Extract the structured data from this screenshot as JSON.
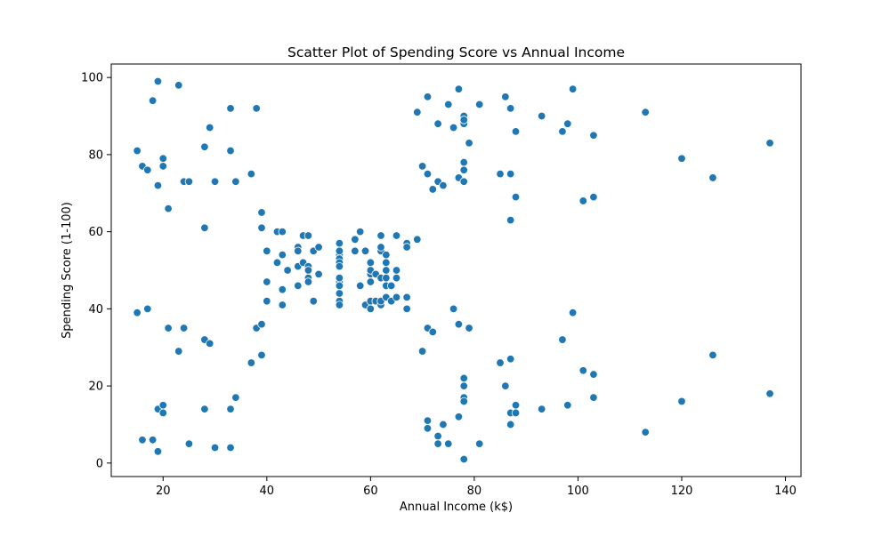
{
  "chart_data": {
    "type": "scatter",
    "title": "Scatter Plot of Spending Score vs Annual Income",
    "xlabel": "Annual Income (k$)",
    "ylabel": "Spending Score (1-100)",
    "xlim": [
      10,
      143
    ],
    "ylim": [
      -3.5,
      103.5
    ],
    "xticks": [
      20,
      40,
      60,
      80,
      100,
      120,
      140
    ],
    "yticks": [
      0,
      20,
      40,
      60,
      80,
      100
    ],
    "grid": false,
    "marker_color": "#1f77b4",
    "points": [
      [
        15,
        39
      ],
      [
        15,
        81
      ],
      [
        16,
        6
      ],
      [
        16,
        77
      ],
      [
        17,
        40
      ],
      [
        17,
        76
      ],
      [
        18,
        6
      ],
      [
        18,
        94
      ],
      [
        19,
        3
      ],
      [
        19,
        72
      ],
      [
        19,
        14
      ],
      [
        19,
        99
      ],
      [
        20,
        15
      ],
      [
        20,
        77
      ],
      [
        20,
        13
      ],
      [
        20,
        79
      ],
      [
        21,
        35
      ],
      [
        21,
        66
      ],
      [
        23,
        29
      ],
      [
        23,
        98
      ],
      [
        24,
        35
      ],
      [
        24,
        73
      ],
      [
        25,
        5
      ],
      [
        25,
        73
      ],
      [
        28,
        14
      ],
      [
        28,
        82
      ],
      [
        28,
        32
      ],
      [
        28,
        61
      ],
      [
        29,
        31
      ],
      [
        29,
        87
      ],
      [
        30,
        4
      ],
      [
        30,
        73
      ],
      [
        33,
        4
      ],
      [
        33,
        92
      ],
      [
        33,
        14
      ],
      [
        33,
        81
      ],
      [
        34,
        17
      ],
      [
        34,
        73
      ],
      [
        37,
        26
      ],
      [
        37,
        75
      ],
      [
        38,
        35
      ],
      [
        38,
        92
      ],
      [
        39,
        36
      ],
      [
        39,
        61
      ],
      [
        39,
        28
      ],
      [
        39,
        65
      ],
      [
        40,
        55
      ],
      [
        40,
        47
      ],
      [
        40,
        42
      ],
      [
        42,
        52
      ],
      [
        42,
        60
      ],
      [
        43,
        54
      ],
      [
        43,
        60
      ],
      [
        43,
        45
      ],
      [
        43,
        41
      ],
      [
        44,
        50
      ],
      [
        46,
        46
      ],
      [
        46,
        51
      ],
      [
        46,
        56
      ],
      [
        46,
        55
      ],
      [
        47,
        52
      ],
      [
        47,
        59
      ],
      [
        48,
        51
      ],
      [
        48,
        59
      ],
      [
        48,
        50
      ],
      [
        48,
        48
      ],
      [
        48,
        47
      ],
      [
        49,
        55
      ],
      [
        49,
        42
      ],
      [
        50,
        49
      ],
      [
        50,
        56
      ],
      [
        54,
        47
      ],
      [
        54,
        54
      ],
      [
        54,
        53
      ],
      [
        54,
        48
      ],
      [
        54,
        52
      ],
      [
        54,
        42
      ],
      [
        54,
        51
      ],
      [
        54,
        55
      ],
      [
        54,
        41
      ],
      [
        54,
        44
      ],
      [
        54,
        57
      ],
      [
        54,
        46
      ],
      [
        57,
        58
      ],
      [
        57,
        55
      ],
      [
        58,
        60
      ],
      [
        58,
        46
      ],
      [
        59,
        55
      ],
      [
        59,
        41
      ],
      [
        60,
        49
      ],
      [
        60,
        40
      ],
      [
        60,
        42
      ],
      [
        60,
        52
      ],
      [
        60,
        47
      ],
      [
        60,
        50
      ],
      [
        61,
        42
      ],
      [
        61,
        49
      ],
      [
        62,
        41
      ],
      [
        62,
        48
      ],
      [
        62,
        59
      ],
      [
        62,
        55
      ],
      [
        62,
        56
      ],
      [
        62,
        42
      ],
      [
        63,
        50
      ],
      [
        63,
        46
      ],
      [
        63,
        43
      ],
      [
        63,
        48
      ],
      [
        63,
        52
      ],
      [
        63,
        54
      ],
      [
        64,
        42
      ],
      [
        64,
        46
      ],
      [
        65,
        48
      ],
      [
        65,
        50
      ],
      [
        65,
        43
      ],
      [
        65,
        59
      ],
      [
        67,
        43
      ],
      [
        67,
        57
      ],
      [
        67,
        56
      ],
      [
        67,
        40
      ],
      [
        69,
        58
      ],
      [
        69,
        91
      ],
      [
        70,
        29
      ],
      [
        70,
        77
      ],
      [
        71,
        35
      ],
      [
        71,
        95
      ],
      [
        71,
        11
      ],
      [
        71,
        75
      ],
      [
        71,
        9
      ],
      [
        71,
        75
      ],
      [
        72,
        34
      ],
      [
        72,
        71
      ],
      [
        73,
        5
      ],
      [
        73,
        88
      ],
      [
        73,
        7
      ],
      [
        73,
        73
      ],
      [
        74,
        10
      ],
      [
        74,
        72
      ],
      [
        75,
        5
      ],
      [
        75,
        93
      ],
      [
        76,
        40
      ],
      [
        76,
        87
      ],
      [
        77,
        12
      ],
      [
        77,
        97
      ],
      [
        77,
        36
      ],
      [
        77,
        74
      ],
      [
        78,
        22
      ],
      [
        78,
        90
      ],
      [
        78,
        17
      ],
      [
        78,
        88
      ],
      [
        78,
        20
      ],
      [
        78,
        76
      ],
      [
        78,
        16
      ],
      [
        78,
        89
      ],
      [
        78,
        1
      ],
      [
        78,
        78
      ],
      [
        78,
        1
      ],
      [
        78,
        73
      ],
      [
        79,
        35
      ],
      [
        79,
        83
      ],
      [
        81,
        5
      ],
      [
        81,
        93
      ],
      [
        85,
        26
      ],
      [
        85,
        75
      ],
      [
        86,
        20
      ],
      [
        86,
        95
      ],
      [
        87,
        27
      ],
      [
        87,
        63
      ],
      [
        87,
        13
      ],
      [
        87,
        75
      ],
      [
        87,
        10
      ],
      [
        87,
        92
      ],
      [
        88,
        13
      ],
      [
        88,
        86
      ],
      [
        88,
        15
      ],
      [
        88,
        69
      ],
      [
        93,
        14
      ],
      [
        93,
        90
      ],
      [
        97,
        32
      ],
      [
        97,
        86
      ],
      [
        98,
        15
      ],
      [
        98,
        88
      ],
      [
        99,
        39
      ],
      [
        99,
        97
      ],
      [
        101,
        24
      ],
      [
        101,
        68
      ],
      [
        103,
        17
      ],
      [
        103,
        85
      ],
      [
        103,
        23
      ],
      [
        103,
        69
      ],
      [
        113,
        8
      ],
      [
        113,
        91
      ],
      [
        120,
        16
      ],
      [
        120,
        79
      ],
      [
        126,
        28
      ],
      [
        126,
        74
      ],
      [
        137,
        18
      ],
      [
        137,
        83
      ]
    ]
  }
}
